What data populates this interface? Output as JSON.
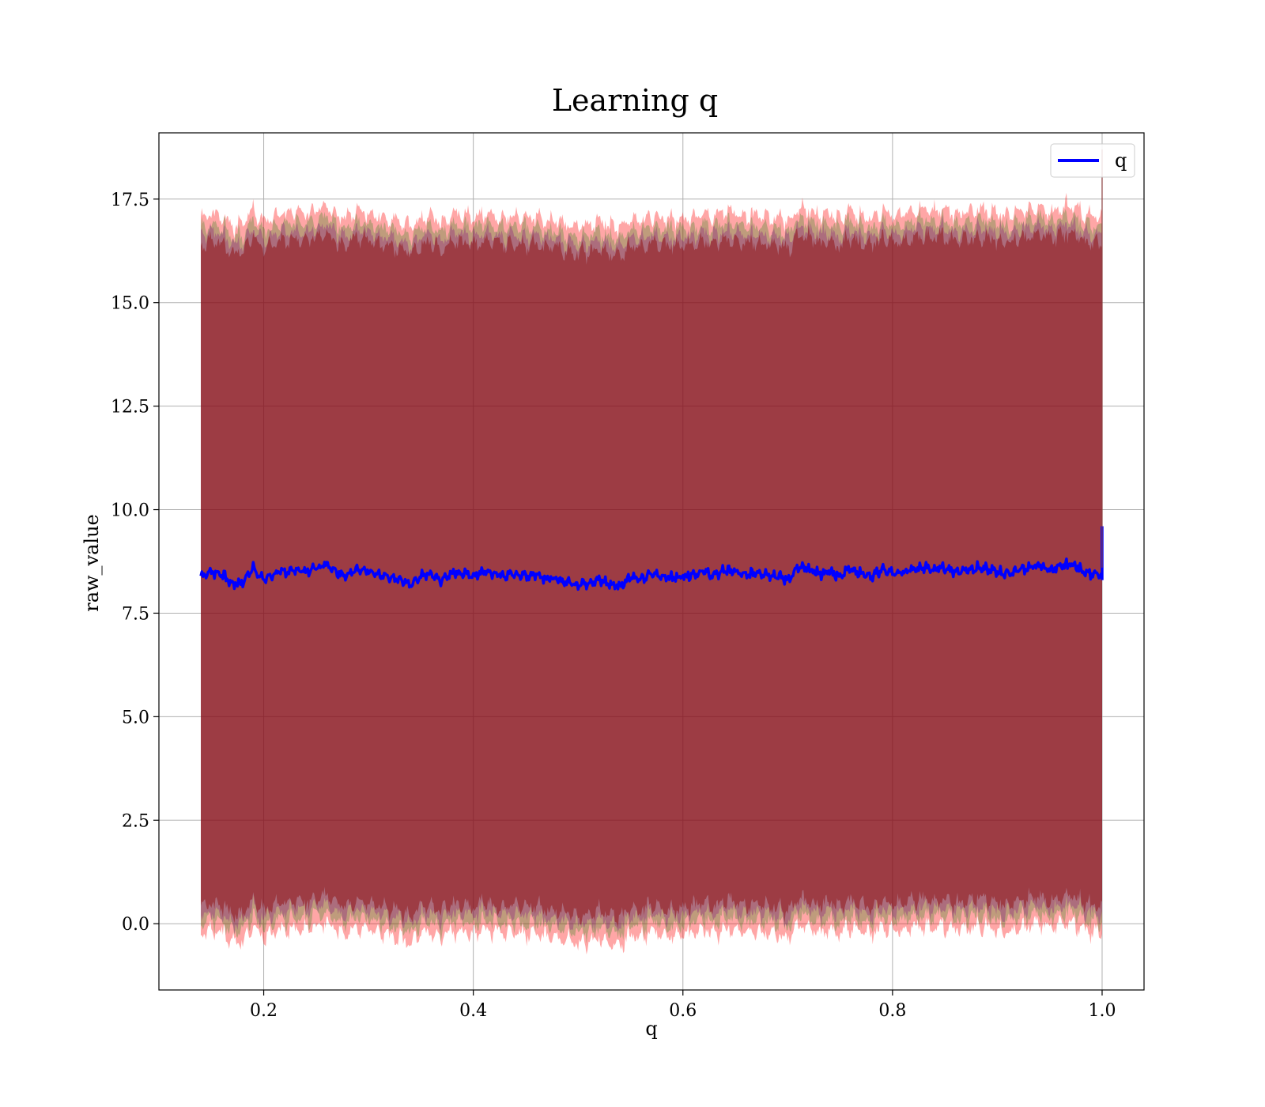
{
  "chart_data": {
    "type": "line",
    "title": "Learning q",
    "xlabel": "q",
    "ylabel": "raw_value",
    "xlim": [
      0.1,
      1.04
    ],
    "ylim": [
      -1.6,
      19.1
    ],
    "xticks": [
      0.2,
      0.4,
      0.6,
      0.8,
      1.0
    ],
    "xtick_labels": [
      "0.2",
      "0.4",
      "0.6",
      "0.8",
      "1.0"
    ],
    "yticks": [
      0.0,
      2.5,
      5.0,
      7.5,
      10.0,
      12.5,
      15.0,
      17.5
    ],
    "ytick_labels": [
      "0.0",
      "2.5",
      "5.0",
      "7.5",
      "10.0",
      "12.5",
      "15.0",
      "17.5"
    ],
    "grid": true,
    "legend": {
      "placement": "top-right",
      "entries": [
        "q"
      ]
    },
    "series": [
      {
        "name": "q",
        "color": "#0000ff",
        "x_range": [
          0.14,
          1.0
        ],
        "x": [
          0.14,
          0.15,
          0.16,
          0.17,
          0.18,
          0.19,
          0.2,
          0.21,
          0.22,
          0.23,
          0.24,
          0.25,
          0.26,
          0.27,
          0.28,
          0.29,
          0.3,
          0.31,
          0.32,
          0.33,
          0.34,
          0.35,
          0.36,
          0.37,
          0.38,
          0.39,
          0.4,
          0.41,
          0.42,
          0.43,
          0.44,
          0.45,
          0.46,
          0.47,
          0.48,
          0.49,
          0.5,
          0.51,
          0.52,
          0.53,
          0.54,
          0.55,
          0.56,
          0.57,
          0.58,
          0.59,
          0.6,
          0.61,
          0.62,
          0.63,
          0.64,
          0.65,
          0.66,
          0.67,
          0.68,
          0.69,
          0.7,
          0.71,
          0.72,
          0.73,
          0.74,
          0.75,
          0.76,
          0.77,
          0.78,
          0.79,
          0.8,
          0.81,
          0.82,
          0.83,
          0.84,
          0.85,
          0.86,
          0.87,
          0.88,
          0.89,
          0.9,
          0.91,
          0.92,
          0.93,
          0.94,
          0.95,
          0.96,
          0.97,
          0.98,
          0.99,
          1.0
        ],
        "values": [
          8.4,
          8.5,
          8.45,
          8.2,
          8.25,
          8.6,
          8.3,
          8.45,
          8.5,
          8.55,
          8.5,
          8.6,
          8.7,
          8.5,
          8.4,
          8.6,
          8.5,
          8.4,
          8.35,
          8.3,
          8.2,
          8.4,
          8.45,
          8.3,
          8.5,
          8.45,
          8.4,
          8.5,
          8.45,
          8.4,
          8.45,
          8.4,
          8.45,
          8.35,
          8.3,
          8.25,
          8.2,
          8.25,
          8.3,
          8.2,
          8.15,
          8.4,
          8.3,
          8.45,
          8.4,
          8.35,
          8.4,
          8.45,
          8.5,
          8.4,
          8.55,
          8.5,
          8.4,
          8.5,
          8.45,
          8.4,
          8.3,
          8.6,
          8.55,
          8.45,
          8.5,
          8.4,
          8.6,
          8.45,
          8.4,
          8.55,
          8.45,
          8.5,
          8.55,
          8.6,
          8.55,
          8.6,
          8.5,
          8.55,
          8.6,
          8.55,
          8.5,
          8.45,
          8.55,
          8.6,
          8.65,
          8.55,
          8.6,
          8.7,
          8.55,
          8.45,
          8.4
        ],
        "end_spike": [
          8.3,
          9.6
        ]
      }
    ],
    "bands": [
      {
        "color": "#ff0000",
        "opacity": 0.35,
        "lower_offset": -8.65,
        "upper_offset": 8.65
      },
      {
        "color": "#008000",
        "opacity": 0.25,
        "lower_offset": -8.4,
        "upper_offset": 8.4
      },
      {
        "color": "#800080",
        "opacity": 0.3,
        "lower_offset": -8.2,
        "upper_offset": 8.2
      },
      {
        "color": "#8b0000",
        "opacity": 0.45,
        "lower_offset": -8.0,
        "upper_offset": 8.0
      }
    ]
  }
}
